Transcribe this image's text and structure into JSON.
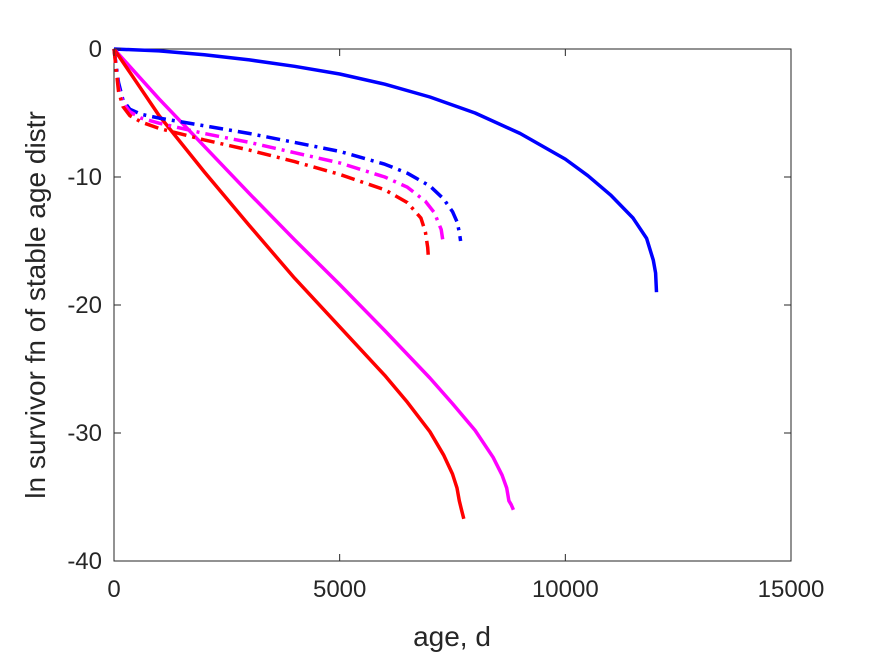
{
  "chart_data": {
    "type": "line",
    "title": "",
    "xlabel": "age, d",
    "ylabel": "ln survivor fn of stable age distr",
    "xlim": [
      0,
      15000
    ],
    "ylim": [
      -40,
      0
    ],
    "xticks": [
      0,
      5000,
      10000,
      15000
    ],
    "yticks": [
      0,
      -10,
      -20,
      -30,
      -40
    ],
    "xtick_labels": [
      "0",
      "5000",
      "10000",
      "15000"
    ],
    "ytick_labels": [
      "0",
      "-10",
      "-20",
      "-30",
      "-40"
    ],
    "grid": false,
    "box": true,
    "series": [
      {
        "color": "#0000ff",
        "style": "solid",
        "points": [
          [
            0,
            0
          ],
          [
            1000,
            -0.15
          ],
          [
            2000,
            -0.45
          ],
          [
            3000,
            -0.85
          ],
          [
            4000,
            -1.35
          ],
          [
            5000,
            -1.95
          ],
          [
            6000,
            -2.75
          ],
          [
            7000,
            -3.75
          ],
          [
            8000,
            -5.0
          ],
          [
            9000,
            -6.6
          ],
          [
            10000,
            -8.6
          ],
          [
            10500,
            -9.9
          ],
          [
            11000,
            -11.4
          ],
          [
            11500,
            -13.2
          ],
          [
            11800,
            -14.8
          ],
          [
            11950,
            -16.5
          ],
          [
            12000,
            -17.5
          ],
          [
            12020,
            -19.0
          ]
        ]
      },
      {
        "color": "#ff00ff",
        "style": "solid",
        "points": [
          [
            0,
            0
          ],
          [
            1000,
            -3.9
          ],
          [
            2000,
            -7.6
          ],
          [
            3000,
            -11.3
          ],
          [
            4000,
            -14.9
          ],
          [
            5000,
            -18.4
          ],
          [
            6000,
            -22.0
          ],
          [
            7000,
            -25.7
          ],
          [
            7500,
            -27.7
          ],
          [
            8000,
            -29.8
          ],
          [
            8400,
            -31.9
          ],
          [
            8600,
            -33.3
          ],
          [
            8700,
            -34.3
          ],
          [
            8750,
            -35.3
          ],
          [
            8800,
            -35.6
          ],
          [
            8850,
            -36.0
          ]
        ]
      },
      {
        "color": "#ff0000",
        "style": "solid",
        "points": [
          [
            0,
            0
          ],
          [
            500,
            -2.6
          ],
          [
            1000,
            -5.2
          ],
          [
            2000,
            -9.6
          ],
          [
            3000,
            -13.8
          ],
          [
            4000,
            -17.9
          ],
          [
            5000,
            -21.7
          ],
          [
            5500,
            -23.6
          ],
          [
            6000,
            -25.5
          ],
          [
            6500,
            -27.6
          ],
          [
            7000,
            -29.9
          ],
          [
            7300,
            -31.7
          ],
          [
            7500,
            -33.2
          ],
          [
            7600,
            -34.3
          ],
          [
            7650,
            -35.3
          ],
          [
            7700,
            -36.0
          ],
          [
            7750,
            -36.7
          ]
        ]
      },
      {
        "color": "#0000ff",
        "style": "dashdot",
        "points": [
          [
            0,
            0
          ],
          [
            100,
            -2.6
          ],
          [
            200,
            -4.0
          ],
          [
            350,
            -4.7
          ],
          [
            600,
            -5.1
          ],
          [
            1000,
            -5.4
          ],
          [
            2000,
            -6.0
          ],
          [
            3000,
            -6.6
          ],
          [
            4000,
            -7.3
          ],
          [
            5000,
            -8.0
          ],
          [
            6000,
            -9.0
          ],
          [
            6500,
            -9.7
          ],
          [
            7000,
            -10.7
          ],
          [
            7300,
            -11.7
          ],
          [
            7500,
            -12.7
          ],
          [
            7600,
            -13.5
          ],
          [
            7650,
            -14.3
          ],
          [
            7680,
            -15.0
          ]
        ]
      },
      {
        "color": "#ff00ff",
        "style": "dashdot",
        "points": [
          [
            0,
            0
          ],
          [
            100,
            -3.0
          ],
          [
            200,
            -4.2
          ],
          [
            350,
            -4.9
          ],
          [
            600,
            -5.4
          ],
          [
            1000,
            -5.8
          ],
          [
            2000,
            -6.6
          ],
          [
            3000,
            -7.3
          ],
          [
            4000,
            -8.1
          ],
          [
            5000,
            -8.9
          ],
          [
            6000,
            -10.0
          ],
          [
            6500,
            -10.8
          ],
          [
            6900,
            -11.9
          ],
          [
            7100,
            -12.8
          ],
          [
            7250,
            -14.1
          ],
          [
            7300,
            -15.3
          ]
        ]
      },
      {
        "color": "#ff0000",
        "style": "dashdot",
        "points": [
          [
            0,
            0
          ],
          [
            100,
            -3.3
          ],
          [
            200,
            -4.5
          ],
          [
            350,
            -5.2
          ],
          [
            600,
            -5.7
          ],
          [
            1000,
            -6.2
          ],
          [
            2000,
            -7.1
          ],
          [
            3000,
            -7.9
          ],
          [
            4000,
            -8.8
          ],
          [
            5000,
            -9.8
          ],
          [
            6000,
            -11.0
          ],
          [
            6500,
            -12.0
          ],
          [
            6800,
            -13.2
          ],
          [
            6900,
            -14.3
          ],
          [
            6950,
            -15.5
          ],
          [
            6970,
            -16.5
          ]
        ]
      }
    ]
  }
}
